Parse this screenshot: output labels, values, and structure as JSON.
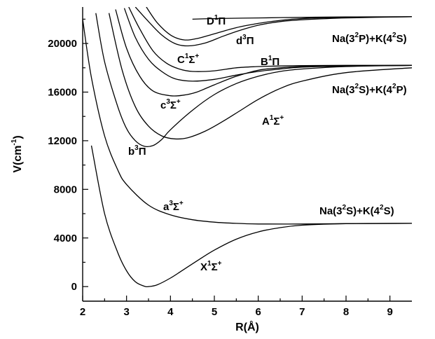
{
  "chart_data": {
    "type": "line",
    "title": "",
    "xlabel": "R(Å)",
    "ylabel": "V(cm-1)",
    "xlim": [
      2,
      9.5
    ],
    "ylim": [
      -1200,
      23000
    ],
    "x_ticks": [
      "2",
      "3",
      "4",
      "5",
      "6",
      "7",
      "8",
      "9"
    ],
    "y_ticks": [
      "0",
      "4000",
      "8000",
      "12000",
      "16000",
      "20000"
    ],
    "grid": false,
    "asymptote_labels": [
      {
        "text": "Na(3²P)+K(4²S)",
        "value": 22200
      },
      {
        "text": "Na(3²S)+K(4²P)",
        "value": 18200
      },
      {
        "text": "Na(3²S)+K(4²S)",
        "value": 5200
      }
    ],
    "series": [
      {
        "name": "X¹Σ⁺",
        "x": [
          2.2,
          2.5,
          2.8,
          3.0,
          3.2,
          3.4,
          3.5,
          3.7,
          4.0,
          4.3,
          4.6,
          5.0,
          5.5,
          6.0,
          6.5,
          7.0,
          8.0,
          9.5
        ],
        "y": [
          11600,
          6000,
          2800,
          1300,
          400,
          40,
          0,
          150,
          700,
          1400,
          2100,
          3000,
          3900,
          4500,
          4850,
          5050,
          5180,
          5200
        ]
      },
      {
        "name": "a³Σ⁺",
        "x": [
          2.0,
          2.2,
          2.5,
          2.8,
          3.0,
          3.5,
          4.0,
          4.5,
          5.0,
          5.5,
          6.0,
          7.0,
          8.0,
          9.5
        ],
        "y": [
          22000,
          17200,
          12400,
          9600,
          8400,
          6700,
          5900,
          5500,
          5300,
          5200,
          5150,
          5150,
          5180,
          5200
        ]
      },
      {
        "name": "b³Π",
        "x": [
          2.3,
          2.5,
          2.8,
          3.0,
          3.2,
          3.4,
          3.6,
          3.8,
          4.0,
          4.5,
          5.0,
          5.5,
          6.0,
          6.5,
          7.0,
          8.0,
          9.5
        ],
        "y": [
          22500,
          18500,
          14800,
          13000,
          12000,
          11550,
          11600,
          12100,
          12900,
          14500,
          15800,
          16700,
          17300,
          17700,
          17900,
          18100,
          18200
        ]
      },
      {
        "name": "A¹Σ⁺",
        "x": [
          2.6,
          2.9,
          3.2,
          3.5,
          3.8,
          4.1,
          4.4,
          4.8,
          5.2,
          5.6,
          6.0,
          6.5,
          7.0,
          8.0,
          9.5
        ],
        "y": [
          22500,
          17800,
          14800,
          13200,
          12400,
          12150,
          12250,
          12800,
          13600,
          14500,
          15400,
          16300,
          16900,
          17600,
          18000
        ]
      },
      {
        "name": "c³Σ⁺",
        "x": [
          2.75,
          3.0,
          3.3,
          3.6,
          4.0,
          4.3,
          4.6,
          5.0,
          5.5,
          6.0,
          6.5,
          7.0,
          8.0,
          9.5
        ],
        "y": [
          22800,
          19600,
          17300,
          16100,
          15700,
          15750,
          16000,
          16600,
          17300,
          17800,
          18000,
          18100,
          18150,
          18200
        ]
      },
      {
        "name": "B¹Π",
        "x": [
          2.95,
          3.2,
          3.5,
          3.8,
          4.1,
          4.5,
          5.0,
          5.5,
          6.0,
          6.5,
          7.0,
          8.0,
          9.5
        ],
        "y": [
          22900,
          20500,
          18700,
          17700,
          17100,
          16900,
          17050,
          17400,
          17700,
          17900,
          18050,
          18150,
          18200
        ]
      },
      {
        "name": "C¹Σ⁺",
        "x": [
          3.05,
          3.3,
          3.6,
          3.9,
          4.2,
          4.5,
          5.0,
          5.5,
          6.0,
          6.5,
          7.0,
          8.0,
          9.5
        ],
        "y": [
          23000,
          21200,
          19400,
          18400,
          17900,
          17700,
          17750,
          18000,
          18100,
          18150,
          18180,
          18200,
          18200
        ]
      },
      {
        "name": "d³Π",
        "x": [
          3.2,
          3.5,
          3.8,
          4.1,
          4.4,
          4.8,
          5.2,
          5.6,
          6.0,
          6.5,
          7.0,
          8.0,
          9.5
        ],
        "y": [
          23000,
          21800,
          20700,
          20000,
          19800,
          20050,
          20600,
          21100,
          21500,
          21800,
          21950,
          22100,
          22200
        ]
      },
      {
        "name": "D¹Π",
        "x": [
          3.45,
          3.7,
          4.0,
          4.3,
          4.6,
          5.0,
          5.5,
          6.0,
          6.5,
          7.0,
          8.0,
          9.5
        ],
        "y": [
          23000,
          21700,
          20700,
          20300,
          20400,
          20800,
          21300,
          21650,
          21900,
          22050,
          22150,
          22200
        ]
      },
      {
        "name": "Na(3²P) asymptote",
        "x": [
          4.5,
          5.0,
          6.0,
          7.0,
          8.0,
          9.5
        ],
        "y": [
          22000,
          22050,
          22100,
          22150,
          22180,
          22200
        ]
      }
    ]
  }
}
